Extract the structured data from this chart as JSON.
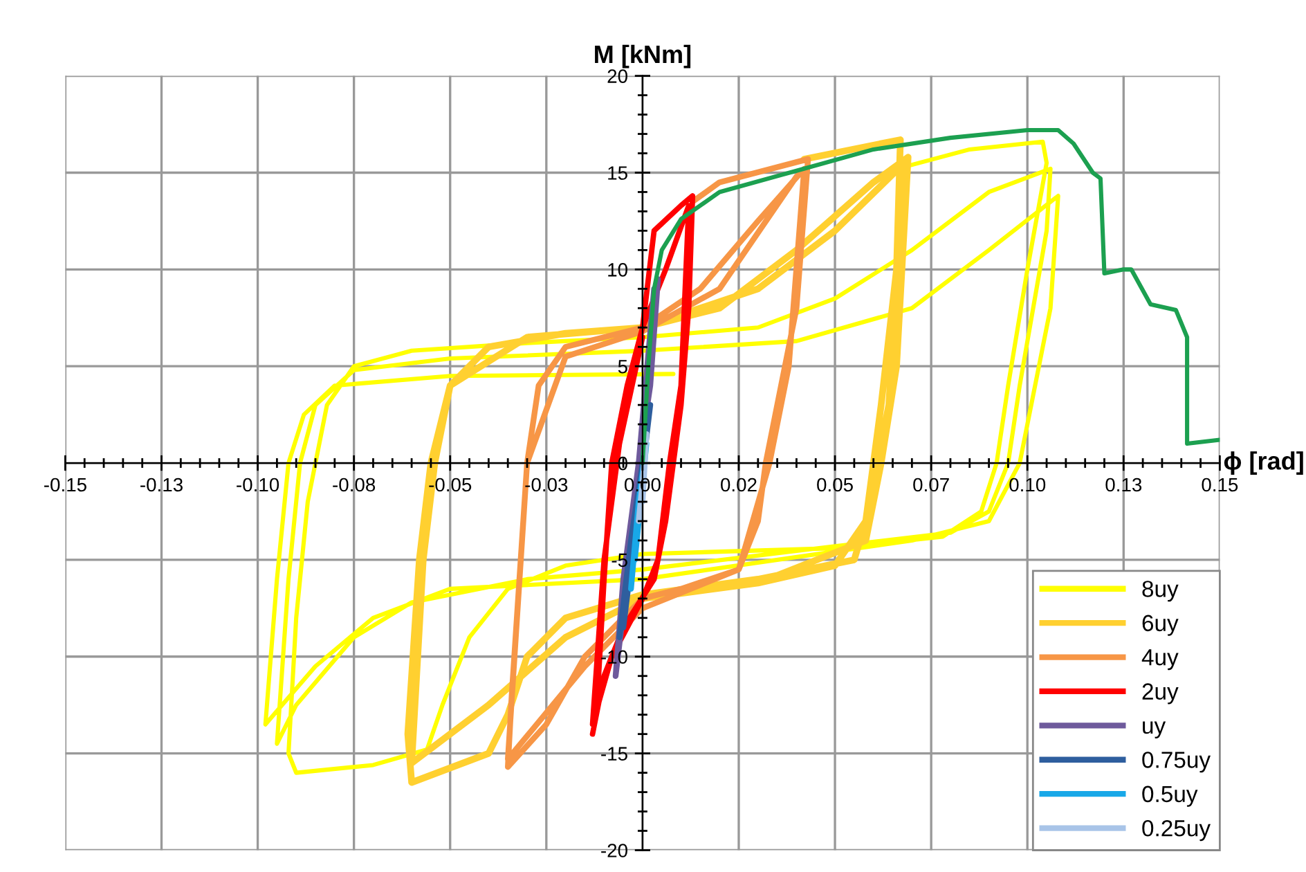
{
  "chart_data": {
    "type": "line",
    "xlabel": "ϕ [rad]",
    "ylabel": "M [kNm]",
    "xlim": [
      -0.15,
      0.15
    ],
    "ylim": [
      -20,
      20
    ],
    "xticks": [
      {
        "value": -0.15,
        "label": "-0.15"
      },
      {
        "value": -0.125,
        "label": "-0.13"
      },
      {
        "value": -0.1,
        "label": "-0.10"
      },
      {
        "value": -0.075,
        "label": "-0.08"
      },
      {
        "value": -0.05,
        "label": "-0.05"
      },
      {
        "value": -0.025,
        "label": "-0.03"
      },
      {
        "value": 0,
        "label": "0.00"
      },
      {
        "value": 0.025,
        "label": "0.02"
      },
      {
        "value": 0.05,
        "label": "0.05"
      },
      {
        "value": 0.075,
        "label": "0.07"
      },
      {
        "value": 0.1,
        "label": "0.10"
      },
      {
        "value": 0.125,
        "label": "0.13"
      },
      {
        "value": 0.15,
        "label": "0.15"
      }
    ],
    "yticks": [
      -20,
      -15,
      -10,
      -5,
      0,
      5,
      10,
      15,
      20
    ],
    "grid": true,
    "legend": "bottom right",
    "marker": "none",
    "line_style": "solid",
    "series": [
      {
        "name": "8uy",
        "color": "#ffff00",
        "x": [
          0.068,
          0.085,
          0.104,
          0.105,
          0.1,
          0.095,
          0.092,
          0.088,
          0.078,
          0.05,
          0.0,
          -0.02,
          -0.035,
          -0.045,
          -0.052,
          -0.056,
          -0.07,
          -0.09,
          -0.092,
          -0.09,
          -0.087,
          -0.085,
          -0.082,
          -0.075,
          -0.06,
          -0.03,
          0.0,
          0.03,
          0.05,
          0.07,
          0.09,
          0.106,
          0.105,
          0.098,
          0.095,
          0.09,
          0.08,
          0.05,
          0.0,
          -0.03,
          -0.06,
          -0.075,
          -0.09,
          -0.095,
          -0.092,
          -0.089,
          -0.085,
          -0.075,
          -0.05,
          0.0,
          0.04,
          0.07,
          0.09,
          0.108,
          0.106,
          0.098,
          0.09,
          0.07,
          0.0,
          -0.05,
          -0.07,
          -0.085,
          -0.098,
          -0.095,
          -0.092,
          -0.088,
          -0.08,
          -0.05,
          0.008
        ],
        "values": [
          15.3,
          16.2,
          16.6,
          15.5,
          10,
          4,
          0,
          -2.5,
          -3.8,
          -4.4,
          -4.7,
          -5.3,
          -6.5,
          -9,
          -12.5,
          -14.8,
          -15.6,
          -16,
          -15,
          -8,
          -2,
          0,
          3,
          5,
          5.8,
          6.2,
          6.5,
          7,
          8.5,
          11,
          14,
          15.2,
          12,
          4,
          0,
          -2.5,
          -3.6,
          -4.3,
          -5.5,
          -6,
          -7.2,
          -9,
          -12.5,
          -14.5,
          -6,
          0,
          3,
          4.8,
          5.4,
          5.8,
          6.3,
          8,
          11,
          13.8,
          8,
          0,
          -3,
          -4,
          -6,
          -6.5,
          -8,
          -10.5,
          -13.5,
          -6,
          0,
          2.5,
          4,
          4.5,
          4.6
        ]
      },
      {
        "name": "6uy",
        "color": "#ffd030",
        "x": [
          0.042,
          0.067,
          0.066,
          0.062,
          0.06,
          0.058,
          0.055,
          0.03,
          0.0,
          -0.02,
          -0.03,
          -0.035,
          -0.04,
          -0.06,
          -0.061,
          -0.058,
          -0.055,
          -0.05,
          -0.04,
          -0.02,
          0.0,
          0.02,
          0.04,
          0.06,
          0.069,
          0.066,
          0.062,
          0.058,
          0.03,
          0.0,
          -0.02,
          -0.04,
          -0.06,
          -0.057,
          -0.054,
          -0.05,
          -0.03,
          0.0,
          0.03,
          0.05,
          0.068,
          0.064,
          0.061,
          0.058,
          0.05,
          0.03,
          0.0
        ],
        "values": [
          15.7,
          16.7,
          10,
          3,
          0,
          -3,
          -5,
          -6,
          -6.8,
          -8,
          -10,
          -13,
          -15,
          -16.5,
          -14,
          -5,
          0,
          4,
          6,
          6.7,
          7,
          8,
          11,
          14.5,
          15.8,
          5,
          0,
          -4,
          -6.2,
          -7,
          -9,
          -12.5,
          -15.5,
          -5,
          0,
          4,
          6.5,
          7,
          9,
          12,
          15.5,
          3,
          0,
          -3,
          -5.3,
          -6.2,
          -7
        ]
      },
      {
        "name": "4uy",
        "color": "#f79646",
        "x": [
          0.013,
          0.02,
          0.043,
          0.04,
          0.035,
          0.032,
          0.03,
          0.025,
          0.01,
          0.0,
          -0.015,
          -0.025,
          -0.035,
          -0.034,
          -0.031,
          -0.03,
          -0.027,
          -0.02,
          0.0,
          0.015,
          0.03,
          0.042,
          0.038,
          0.033,
          0.025,
          0.0,
          -0.015,
          -0.035,
          -0.03,
          -0.02,
          0.0,
          0.02,
          0.04
        ],
        "values": [
          13.5,
          14.5,
          15.7,
          8,
          3,
          0,
          -3,
          -5.5,
          -6.5,
          -7,
          -10,
          -13.5,
          -15.7,
          -12,
          -3,
          0,
          4,
          6,
          7,
          9,
          12.5,
          15.2,
          5,
          0,
          -5.5,
          -7.5,
          -10.5,
          -15.3,
          0,
          5.5,
          6.8,
          9,
          14.8
        ]
      },
      {
        "name": "2uy",
        "color": "#ff0000",
        "x": [
          0.0,
          0.003,
          0.01,
          0.013,
          0.012,
          0.01,
          0.008,
          0.006,
          0.003,
          -0.005,
          -0.01,
          -0.013,
          -0.012,
          -0.01,
          -0.008,
          -0.004,
          0.0,
          0.006,
          0.012,
          0.01,
          0.007,
          0.004,
          0.0,
          -0.008,
          -0.013,
          -0.01,
          -0.006,
          0.0
        ],
        "values": [
          7,
          12,
          13.3,
          13.8,
          8,
          3,
          0,
          -3,
          -6,
          -8.5,
          -11,
          -14,
          -13,
          -6,
          0,
          4,
          7,
          10,
          13.3,
          4,
          0,
          -5,
          -7,
          -10,
          -13.5,
          -5,
          1,
          6.5
        ]
      },
      {
        "name": "uy",
        "color": "#6e5a9c",
        "x": [
          0.0,
          0.004,
          0.002,
          -0.001,
          -0.004,
          -0.007,
          -0.005,
          -0.001,
          0.003
        ],
        "values": [
          0,
          9.5,
          4,
          0,
          -6,
          -11,
          -6,
          0,
          9
        ]
      },
      {
        "name": "0.75uy",
        "color": "#2e5e9e",
        "x": [
          -0.006,
          -0.003,
          0.0,
          0.002,
          -0.001,
          -0.005
        ],
        "values": [
          -9,
          -4,
          0,
          3,
          -2,
          -8.5
        ]
      },
      {
        "name": "0.5uy",
        "color": "#18a8e8",
        "x": [
          -0.003,
          -0.001,
          0.001,
          -0.002
        ],
        "values": [
          -6.5,
          -2,
          1,
          -5
        ]
      },
      {
        "name": "0.25uy",
        "color": "#a8c4e8",
        "x": [
          -0.001,
          0.0,
          0.001,
          0.0
        ],
        "values": [
          -3,
          -1,
          1.5,
          -2
        ]
      },
      {
        "color": "#1ca050",
        "x": [
          0.0,
          0.0015,
          0.003,
          0.005,
          0.01,
          0.02,
          0.04,
          0.06,
          0.08,
          0.1,
          0.108,
          0.112,
          0.117,
          0.119,
          0.12,
          0.125,
          0.127,
          0.132,
          0.1386,
          0.1415,
          0.1415,
          0.15
        ],
        "values": [
          0,
          5,
          9,
          11,
          12.6,
          14,
          15.1,
          16.2,
          16.8,
          17.2,
          17.2,
          16.5,
          15,
          14.7,
          9.8,
          10,
          10,
          8.2,
          7.9,
          6.5,
          1.0,
          1.2
        ]
      }
    ]
  }
}
